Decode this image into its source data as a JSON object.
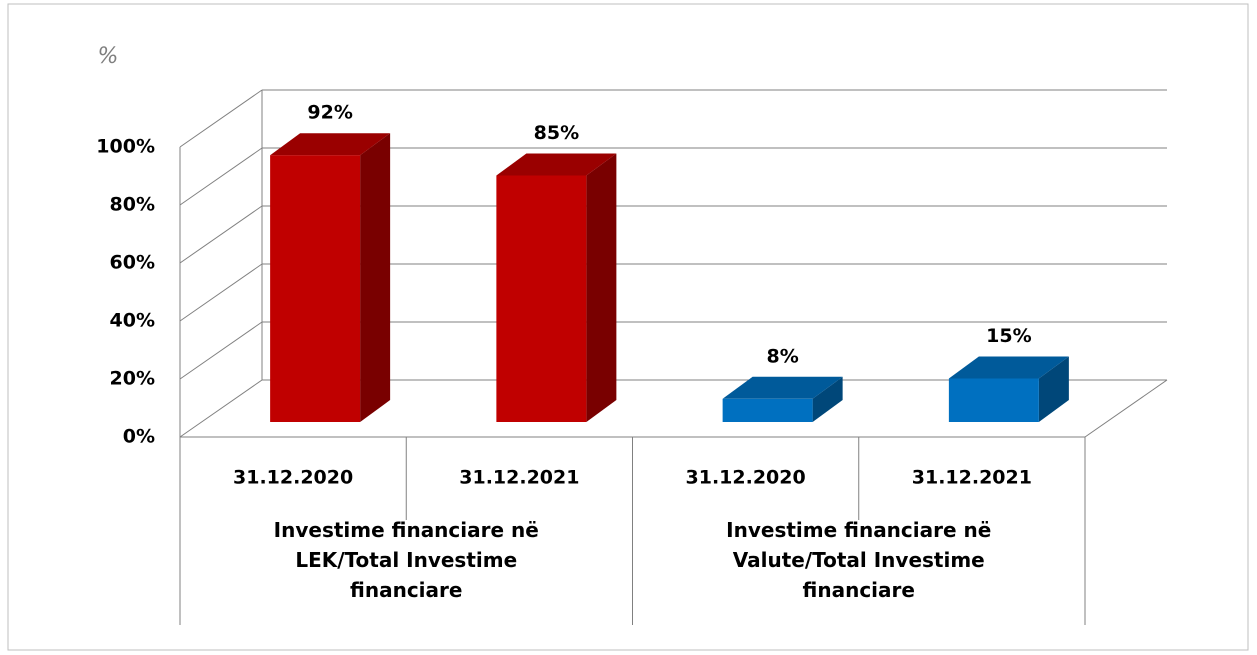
{
  "chart_data": {
    "type": "bar3d",
    "ylabel": "%",
    "categories": [
      "31.12.2020",
      "31.12.2021",
      "31.12.2020",
      "31.12.2021"
    ],
    "groups": [
      "Investime financiare në LEK/Total Investime financiare",
      "Investime financiare në Valute/Total Investime financiare"
    ],
    "values": [
      92,
      85,
      8,
      15
    ],
    "value_labels": [
      "92%",
      "85%",
      "8%",
      "15%"
    ],
    "colors": [
      "#c00000",
      "#c00000",
      "#0070c0",
      "#0070c0"
    ],
    "ylim": [
      0,
      100
    ],
    "yticks": [
      {
        "value": 0,
        "label": "0%"
      },
      {
        "value": 20,
        "label": "20%"
      },
      {
        "value": 40,
        "label": "40%"
      },
      {
        "value": 60,
        "label": "60%"
      },
      {
        "value": 80,
        "label": "80%"
      },
      {
        "value": 100,
        "label": "100%"
      }
    ],
    "grid": true
  }
}
